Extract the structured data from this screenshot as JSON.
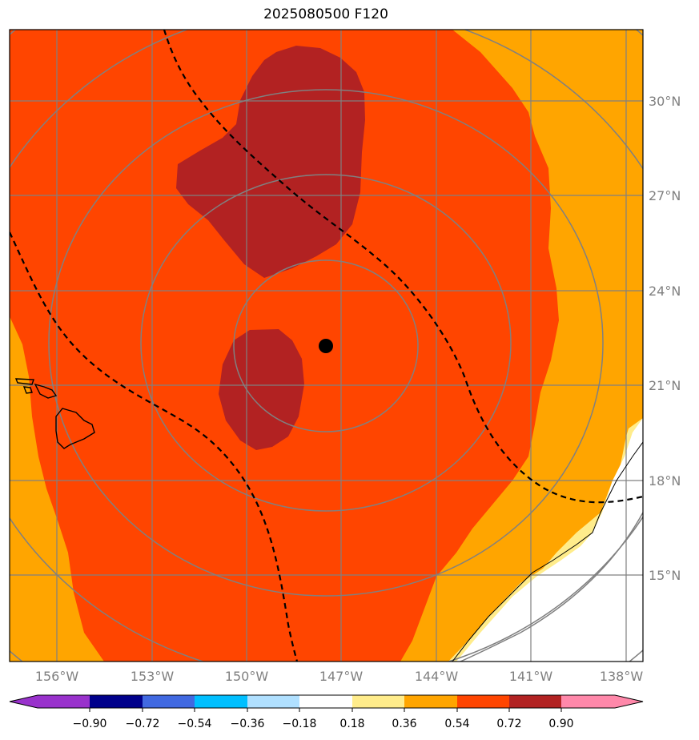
{
  "title": "2025080500 F120",
  "lat_labels": [
    "30°N",
    "27°N",
    "24°N",
    "21°N",
    "18°N",
    "15°N"
  ],
  "lon_labels": [
    "156°W",
    "153°W",
    "150°W",
    "147°W",
    "144°W",
    "141°W",
    "138°W"
  ],
  "center_marker": {
    "lat": 22.2,
    "lon": -147.5
  },
  "colorbar": {
    "ticks": [
      "−0.90",
      "−0.72",
      "−0.54",
      "−0.36",
      "−0.18",
      "0.18",
      "0.36",
      "0.54",
      "0.72",
      "0.90"
    ],
    "colors": [
      "#9932cc",
      "#00008b",
      "#4169e1",
      "#00bfff",
      "#b0e0ff",
      "#ffffff",
      "#ffec8b",
      "#ffa500",
      "#ff4500",
      "#b22222",
      "#ff88aa"
    ]
  },
  "colors": {
    "grid": "#808080",
    "coast": "#000000",
    "contour_dashed": "#000000"
  }
}
